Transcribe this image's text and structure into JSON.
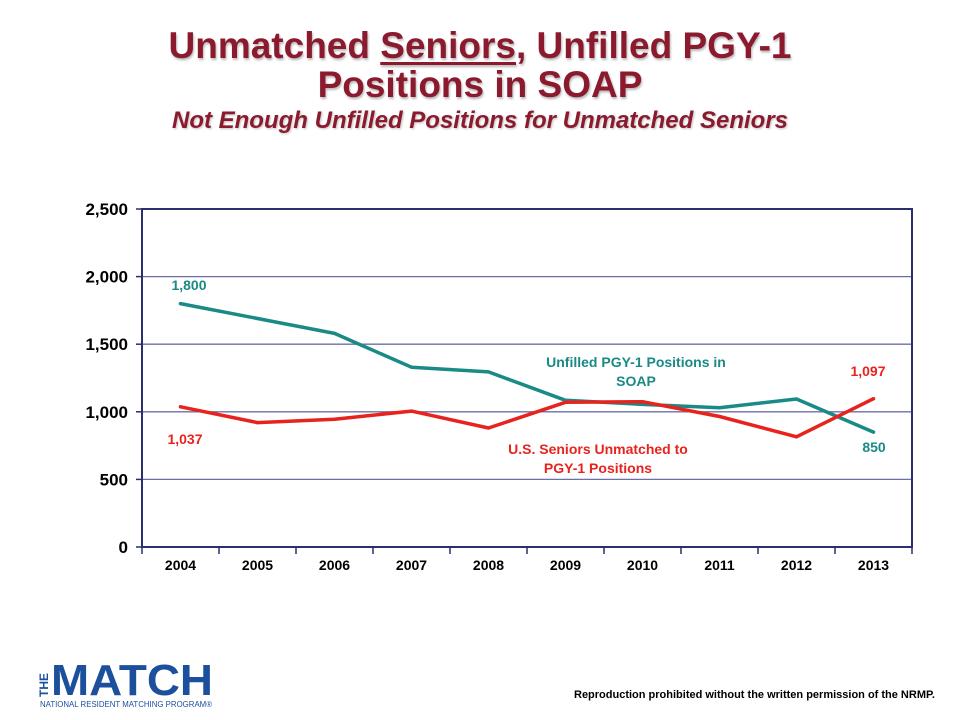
{
  "header": {
    "title_pre": "Unmatched ",
    "title_underlined": "Seniors",
    "title_post": ", Unfilled PGY-1",
    "title_line2": "Positions in SOAP",
    "subtitle": "Not Enough Unfilled Positions for Unmatched Seniors"
  },
  "chart_data": {
    "type": "line",
    "title": "",
    "xlabel": "",
    "ylabel": "",
    "x": [
      "2004",
      "2005",
      "2006",
      "2007",
      "2008",
      "2009",
      "2010",
      "2011",
      "2012",
      "2013"
    ],
    "ylim": [
      0,
      2500
    ],
    "yticks": [
      0,
      500,
      1000,
      1500,
      2000,
      2500
    ],
    "ytick_labels": [
      "0",
      "500",
      "1,000",
      "1,500",
      "2,000",
      "2,500"
    ],
    "grid": true,
    "series": [
      {
        "name": "Unfilled PGY-1 Positions in SOAP",
        "label_lines": [
          "Unfilled PGY-1 Positions in",
          "SOAP"
        ],
        "color": "#1a8a86",
        "values": [
          1800,
          1690,
          1580,
          1330,
          1295,
          1085,
          1055,
          1030,
          1095,
          850
        ]
      },
      {
        "name": "U.S. Seniors Unmatched to PGY-1 Positions",
        "label_lines": [
          "U.S. Seniors Unmatched to",
          "PGY-1 Positions"
        ],
        "color": "#e8231e",
        "values": [
          1037,
          920,
          945,
          1005,
          880,
          1070,
          1075,
          965,
          815,
          1097
        ]
      }
    ],
    "annotations": [
      {
        "series": 0,
        "index": 0,
        "text": "1,800"
      },
      {
        "series": 1,
        "index": 0,
        "text": "1,037"
      },
      {
        "series": 1,
        "index": 9,
        "text": "1,097"
      },
      {
        "series": 0,
        "index": 9,
        "text": "850"
      }
    ],
    "frame_color": "#2a2f6e",
    "grid_color": "#6b6fa8"
  },
  "logo": {
    "vertical_text": "THE",
    "word": "MATCH",
    "tagline": "NATIONAL RESIDENT MATCHING PROGRAM®",
    "color": "#1c4f9c"
  },
  "footer": {
    "notice": "Reproduction prohibited without the written permission of the NRMP."
  }
}
